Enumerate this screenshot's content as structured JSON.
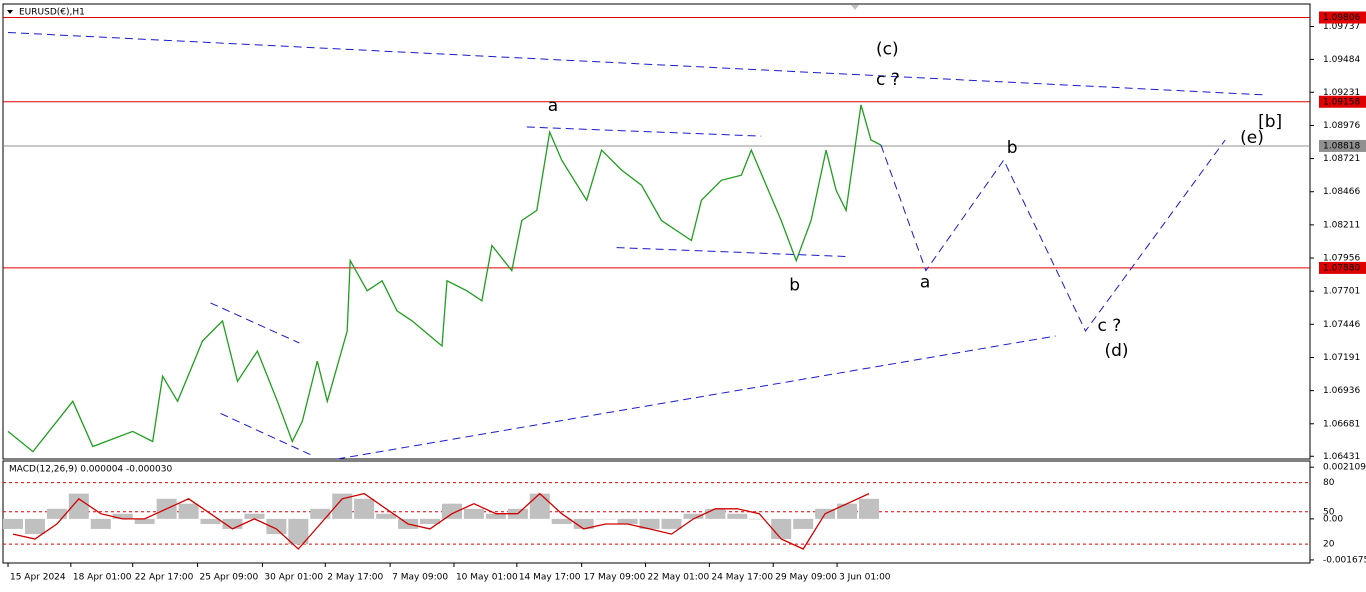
{
  "chart_data": [
    {
      "type": "line",
      "title": "EURUSD(€),H1",
      "xlim": [
        -5,
        1305
      ],
      "ylim": [
        1.0641,
        1.0991
      ],
      "xticks": [
        {
          "value": 0,
          "label": "15 Apr 2024"
        },
        {
          "value": 63,
          "label": "18 Apr 01:00"
        },
        {
          "value": 125,
          "label": "22 Apr 17:00"
        },
        {
          "value": 190,
          "label": "25 Apr 09:00"
        },
        {
          "value": 255,
          "label": "30 Apr 01:00"
        },
        {
          "value": 318,
          "label": "2 May 17:00"
        },
        {
          "value": 383,
          "label": "7 May 09:00"
        },
        {
          "value": 447,
          "label": "10 May 01:00"
        },
        {
          "value": 510,
          "label": "14 May 17:00"
        },
        {
          "value": 575,
          "label": "17 May 09:00"
        },
        {
          "value": 639,
          "label": "22 May 01:00"
        },
        {
          "value": 703,
          "label": "24 May 17:00"
        },
        {
          "value": 767,
          "label": "29 May 09:00"
        },
        {
          "value": 831,
          "label": "3 Jun 01:00"
        }
      ],
      "yticks": [
        1.09737,
        1.09484,
        1.09231,
        1.08976,
        1.08721,
        1.08466,
        1.08211,
        1.07956,
        1.07701,
        1.07446,
        1.07191,
        1.06936,
        1.06681,
        1.06431
      ],
      "levels": [
        {
          "value": 1.09806,
          "color": "#e00000"
        },
        {
          "value": 1.09158,
          "color": "#e00000"
        },
        {
          "value": 1.08818,
          "color": "#909090"
        },
        {
          "value": 1.0788,
          "label": "1.07880",
          "color": "#e00000"
        }
      ],
      "series": [
        {
          "color": "#1f9e1f",
          "dash": false,
          "x": [
            0,
            25,
            65,
            85,
            125,
            145,
            155,
            170,
            195,
            215,
            230,
            250,
            270,
            285,
            295,
            310,
            320,
            340,
            343,
            360,
            375,
            390,
            405,
            435,
            440,
            460,
            475,
            485,
            505,
            515,
            530,
            543,
            555,
            580,
            595,
            615,
            635,
            655,
            685,
            695,
            715,
            735,
            745,
            760,
            775,
            790,
            805,
            820,
            830,
            840,
            855,
            865,
            875
          ],
          "values": [
            1.06622,
            1.06467,
            1.06854,
            1.06506,
            1.06622,
            1.06545,
            1.07047,
            1.06854,
            1.07318,
            1.07472,
            1.07008,
            1.0724,
            1.06854,
            1.06545,
            1.06699,
            1.07163,
            1.06854,
            1.07395,
            1.07936,
            1.07704,
            1.07781,
            1.07549,
            1.07472,
            1.07279,
            1.07781,
            1.07704,
            1.07627,
            1.08052,
            1.07859,
            1.08245,
            1.08322,
            1.08925,
            1.08709,
            1.084,
            1.08786,
            1.08632,
            1.08516,
            1.08245,
            1.08091,
            1.084,
            1.08554,
            1.08593,
            1.08786,
            1.08516,
            1.08245,
            1.07936,
            1.08245,
            1.08786,
            1.08477,
            1.08322,
            1.09134,
            1.08864,
            1.08825
          ]
        },
        {
          "color": "#1a1acc",
          "dash": true,
          "x": [
            875,
            920,
            998,
            1080,
            1220
          ],
          "values": [
            1.08825,
            1.07859,
            1.08709,
            1.07395,
            1.08864
          ]
        },
        {
          "color": "#1a1acc",
          "dash": true,
          "x": [
            0,
            1260
          ],
          "values": [
            1.09691,
            1.09211
          ]
        },
        {
          "color": "#1a1acc",
          "dash": true,
          "x": [
            330,
            1050
          ],
          "values": [
            1.0641,
            1.07356
          ]
        },
        {
          "color": "#1a1acc",
          "dash": true,
          "x": [
            520,
            755
          ],
          "values": [
            1.08964,
            1.08894
          ]
        },
        {
          "color": "#1a1acc",
          "dash": true,
          "x": [
            610,
            843
          ],
          "values": [
            1.08036,
            1.07967
          ]
        },
        {
          "color": "#1a1acc",
          "dash": true,
          "x": [
            203,
            292
          ],
          "values": [
            1.07611,
            1.07302
          ]
        },
        {
          "color": "#1a1acc",
          "dash": true,
          "x": [
            213,
            303
          ],
          "values": [
            1.06761,
            1.06444
          ]
        }
      ],
      "annotations": [
        {
          "text": "(c)",
          "x": 870,
          "y": 1.09559,
          "color": "#1a1acc"
        },
        {
          "text": "c ?",
          "x": 870,
          "y": 1.09327,
          "color": "#e020e0"
        },
        {
          "text": "a",
          "x": 541,
          "y": 1.09126,
          "color": "#e020e0"
        },
        {
          "text": "b",
          "x": 783,
          "y": 1.07743,
          "color": "#e020e0"
        },
        {
          "text": "a",
          "x": 914,
          "y": 1.07766,
          "color": "#e020e0"
        },
        {
          "text": "b",
          "x": 1001,
          "y": 1.08802,
          "color": "#e020e0"
        },
        {
          "text": "c ?",
          "x": 1092,
          "y": 1.07433,
          "color": "#e020e0"
        },
        {
          "text": "(d)",
          "x": 1099,
          "y": 1.0724,
          "color": "#1a1acc"
        },
        {
          "text": "(e)",
          "x": 1235,
          "y": 1.08879,
          "color": "#1a1acc"
        },
        {
          "text": "[b]",
          "x": 1253,
          "y": 1.09003,
          "color": "#2e8b2e"
        }
      ]
    },
    {
      "type": "macd",
      "title": "MACD(12,26,9) 0.000004 -0.000030",
      "xlim": [
        -5,
        1305
      ],
      "ylim": [
        -0.0018,
        0.00236
      ],
      "yticks": [
        0.002109,
        {
          "value": 0,
          "label": "0.00"
        },
        -0.001675
      ],
      "levels": [
        {
          "value": 0.00148,
          "label": "80",
          "color": "#e00000"
        },
        {
          "value": 0.00029,
          "label": "50",
          "color": "#e00000"
        },
        {
          "value": -0.00103,
          "label": "20",
          "color": "#e00000"
        }
      ],
      "hist_color": "#c0c0c0",
      "signal_color": "#d00000",
      "x": [
        5,
        27,
        49,
        71,
        93,
        115,
        137,
        159,
        181,
        203,
        225,
        247,
        269,
        291,
        313,
        335,
        357,
        379,
        401,
        423,
        445,
        467,
        489,
        511,
        533,
        555,
        577,
        599,
        621,
        643,
        665,
        687,
        709,
        731,
        753,
        775,
        797,
        819,
        841,
        863
      ],
      "values": [
        -0.00041,
        -0.00062,
        0.00041,
        0.00103,
        -0.00041,
        0.00021,
        -0.00021,
        0.00082,
        0.00062,
        -0.00021,
        -0.00041,
        0.00021,
        -0.00062,
        -0.00103,
        0.00041,
        0.00103,
        0.00082,
        0.00021,
        -0.00041,
        -0.00021,
        0.00062,
        0.00041,
        0.00021,
        0.00041,
        0.00103,
        -0.00021,
        -0.00041,
        0,
        -0.00021,
        -0.00041,
        -0.00041,
        0.00021,
        0.00041,
        0.00021,
        0,
        -0.00082,
        -0.00041,
        0.00041,
        0.00062,
        0.00082
      ],
      "signal": [
        -0.00062,
        -0.00082,
        -0.00021,
        0.00082,
        0.00021,
        0,
        0,
        0.00041,
        0.00082,
        0.00021,
        -0.00041,
        0,
        -0.00041,
        -0.00123,
        -0.00021,
        0.00082,
        0.00103,
        0.00041,
        -0.00021,
        -0.00041,
        0.00021,
        0.00062,
        0.00021,
        0.00021,
        0.00103,
        0.00021,
        -0.00041,
        -0.00021,
        -0.00021,
        -0.00041,
        -0.00062,
        0,
        0.00041,
        0.00041,
        0.00021,
        -0.00082,
        -0.00123,
        0.00021,
        0.00062,
        0.00103
      ]
    }
  ]
}
